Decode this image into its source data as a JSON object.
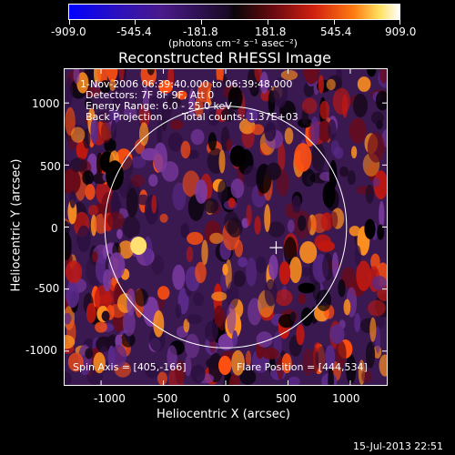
{
  "colorbar": {
    "ticks": [
      "-909.0",
      "-545.4",
      "-181.8",
      "181.8",
      "545.4",
      "909.0"
    ],
    "unit_label": "(photons cm⁻² s⁻¹ asec⁻²)",
    "colors": [
      "#0000ff",
      "#4a1a8a",
      "#0a0608",
      "#d02010",
      "#ff7a10",
      "#ffffff"
    ]
  },
  "plot": {
    "title": "Reconstructed RHESSI Image",
    "xlabel": "Heliocentric X (arcsec)",
    "ylabel": "Heliocentric Y (arcsec)",
    "xticks": [
      "-1000",
      "-500",
      "0",
      "500",
      "1000"
    ],
    "yticks": [
      "1000",
      "500",
      "0",
      "-500",
      "-1000"
    ],
    "xlim": [
      -1300,
      1300
    ],
    "ylim": [
      -1280,
      1280
    ],
    "solar_radius_arcsec": 970,
    "flare_marker": {
      "x": 405,
      "y": -166
    }
  },
  "info": {
    "line1": "1-Nov-2006 06:39:40.000 to 06:39:48.000",
    "line2": "Detectors: 7F 8F 9F, Att 0",
    "line3": "Energy Range: 6.0 - 25.0 keV",
    "line4": "Back Projection",
    "line4b": "Total counts: 1.37E+03",
    "spin_axis": "Spin Axis = [405,-166]",
    "flare_position": "Flare Position = [444,534]"
  },
  "footer": {
    "timestamp": "15-Jul-2013 22:51"
  }
}
